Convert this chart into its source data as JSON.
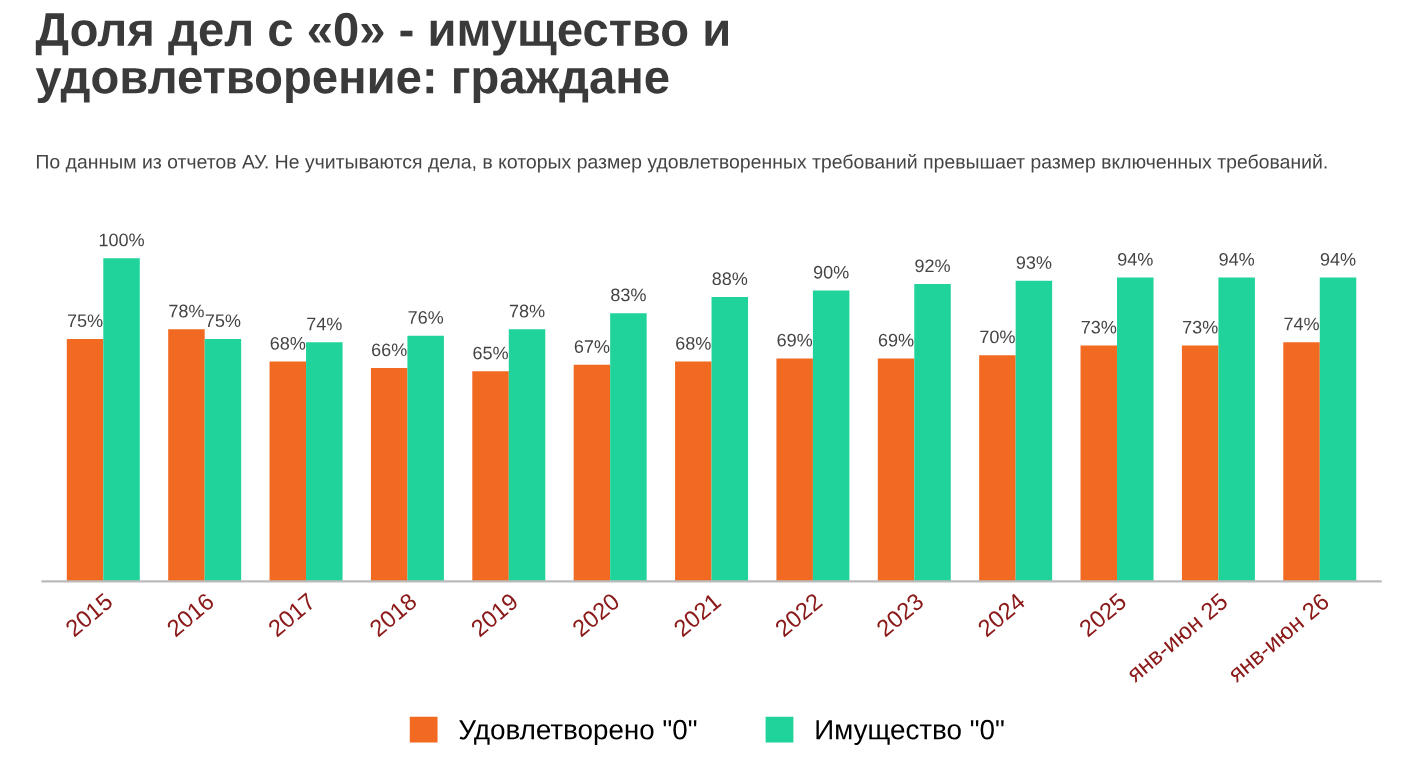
{
  "chart_data": {
    "type": "bar",
    "title": "Доля дел с «0» - имущество и удовлетворение: граждане",
    "subtitle": "По данным из отчетов АУ. Не учитываются дела, в которых размер удовлетворенных требований превышает размер включенных требований.",
    "categories": [
      "2015",
      "2016",
      "2017",
      "2018",
      "2019",
      "2020",
      "2021",
      "2022",
      "2023",
      "2024",
      "2025",
      "янв-июн 25",
      "янв-июн 26"
    ],
    "series": [
      {
        "name": "Удовлетворено \"0\"",
        "color": "#f26a21",
        "values": [
          75,
          78,
          68,
          66,
          65,
          67,
          68,
          69,
          69,
          70,
          73,
          73,
          74
        ],
        "value_labels": [
          "75%",
          "78%",
          "68%",
          "66%",
          "65%",
          "67%",
          "68%",
          "69%",
          "69%",
          "70%",
          "73%",
          "73%",
          "74%"
        ]
      },
      {
        "name": "Имущество \"0\"",
        "color": "#1fd39b",
        "values": [
          100,
          75,
          74,
          76,
          78,
          83,
          88,
          90,
          92,
          93,
          94,
          94,
          94
        ],
        "value_labels": [
          "100%",
          "75%",
          "74%",
          "76%",
          "78%",
          "83%",
          "88%",
          "90%",
          "92%",
          "93%",
          "94%",
          "94%",
          "94%"
        ]
      }
    ],
    "legend": "bottom",
    "grid": false
  }
}
